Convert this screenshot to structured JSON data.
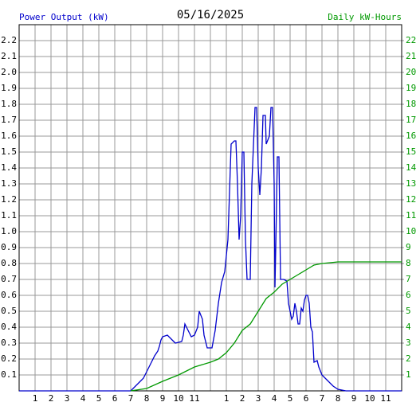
{
  "chart_data": {
    "type": "line",
    "title": "05/16/2025",
    "ylabel": "Power Output (kW)",
    "y2label": "Daily kW-Hours",
    "xlim": [
      0,
      24
    ],
    "xticks": [
      1,
      2,
      3,
      4,
      5,
      6,
      7,
      8,
      9,
      10,
      11,
      {
        "value": 12,
        "label": null
      },
      {
        "value": 13,
        "label": "1"
      },
      {
        "value": 14,
        "label": "2"
      },
      {
        "value": 15,
        "label": "3"
      },
      {
        "value": 16,
        "label": "4"
      },
      {
        "value": 17,
        "label": "5"
      },
      {
        "value": 18,
        "label": "6"
      },
      {
        "value": 19,
        "label": "7"
      },
      {
        "value": 20,
        "label": "8"
      },
      {
        "value": 21,
        "label": "9"
      },
      {
        "value": 22,
        "label": "10"
      },
      {
        "value": 23,
        "label": "11"
      }
    ],
    "ylim": [
      0,
      2.3
    ],
    "yticks": [
      0.1,
      0.2,
      0.3,
      0.4,
      0.5,
      0.6,
      0.7,
      0.8,
      0.9,
      {
        "value": 1,
        "label": "1.0"
      },
      1.1,
      1.2,
      1.3,
      1.4,
      1.5,
      1.6,
      1.7,
      1.8,
      1.9,
      {
        "value": 2,
        "label": "2.0"
      },
      2.1,
      2.2
    ],
    "y2lim": [
      0,
      23
    ],
    "y2ticks": [
      1,
      2,
      3,
      4,
      5,
      6,
      7,
      8,
      9,
      10,
      11,
      12,
      13,
      14,
      15,
      16,
      17,
      18,
      19,
      20,
      21,
      22
    ],
    "grid": true,
    "series": [
      {
        "name": "Power Output (kW)",
        "color": "#0000cc",
        "x": [
          0,
          7.0,
          7.2,
          7.5,
          7.8,
          8.0,
          8.3,
          8.5,
          8.7,
          8.8,
          8.9,
          9.0,
          9.3,
          9.6,
          9.8,
          10.2,
          10.3,
          10.4,
          10.6,
          10.8,
          11.0,
          11.2,
          11.3,
          11.5,
          11.6,
          11.8,
          12.1,
          12.3,
          12.5,
          12.7,
          12.9,
          13.0,
          13.1,
          13.2,
          13.3,
          13.5,
          13.6,
          13.7,
          13.8,
          13.9,
          14.0,
          14.1,
          14.2,
          14.3,
          14.5,
          14.6,
          14.8,
          14.9,
          15.0,
          15.1,
          15.2,
          15.3,
          15.45,
          15.5,
          15.7,
          15.8,
          15.9,
          16.0,
          16.05,
          16.1,
          16.2,
          16.3,
          16.4,
          16.6,
          16.8,
          16.9,
          17.0,
          17.1,
          17.2,
          17.3,
          17.4,
          17.5,
          17.6,
          17.7,
          17.8,
          17.9,
          18.0,
          18.1,
          18.2,
          18.3,
          18.4,
          18.5,
          18.7,
          18.8,
          19.0,
          19.2,
          19.5,
          19.7,
          20.0,
          20.5,
          24
        ],
        "values": [
          0,
          0,
          0.02,
          0.05,
          0.08,
          0.12,
          0.18,
          0.22,
          0.25,
          0.28,
          0.32,
          0.34,
          0.35,
          0.32,
          0.3,
          0.31,
          0.35,
          0.42,
          0.38,
          0.34,
          0.35,
          0.4,
          0.5,
          0.45,
          0.35,
          0.27,
          0.27,
          0.38,
          0.55,
          0.68,
          0.75,
          0.85,
          0.95,
          1.25,
          1.55,
          1.57,
          1.57,
          1.3,
          0.95,
          1.1,
          1.5,
          1.5,
          0.95,
          0.7,
          0.7,
          1.3,
          1.78,
          1.78,
          1.4,
          1.23,
          1.4,
          1.73,
          1.73,
          1.55,
          1.6,
          1.78,
          1.78,
          1.3,
          0.65,
          0.9,
          1.47,
          1.47,
          0.7,
          0.7,
          0.69,
          0.55,
          0.5,
          0.45,
          0.47,
          0.55,
          0.5,
          0.42,
          0.42,
          0.52,
          0.5,
          0.57,
          0.6,
          0.6,
          0.55,
          0.4,
          0.37,
          0.18,
          0.19,
          0.15,
          0.1,
          0.08,
          0.05,
          0.03,
          0.01,
          0,
          0
        ]
      },
      {
        "name": "Daily kW-Hours",
        "color": "#009900",
        "axis": "y2",
        "x": [
          7.0,
          8,
          9,
          10,
          11,
          12,
          12.5,
          13,
          13.5,
          14,
          14.5,
          15,
          15.5,
          16,
          16.5,
          17,
          17.5,
          18,
          18.5,
          19,
          20,
          24
        ],
        "values": [
          0,
          0.15,
          0.6,
          1.0,
          1.5,
          1.8,
          2.0,
          2.4,
          3.0,
          3.8,
          4.2,
          5.0,
          5.8,
          6.2,
          6.7,
          7.0,
          7.3,
          7.6,
          7.9,
          8.0,
          8.1,
          8.1
        ]
      }
    ]
  }
}
